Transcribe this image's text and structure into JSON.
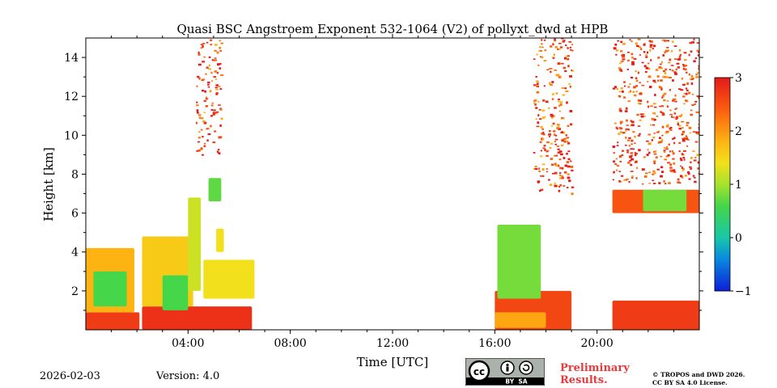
{
  "chart_data": {
    "type": "heatmap",
    "title": "Quasi BSC Angstroem Exponent 532-1064 (V2) of pollyxt_dwd at HPB",
    "xlabel": "Time [UTC]",
    "ylabel": "Height [km]",
    "xlim": [
      0,
      24
    ],
    "ylim": [
      0,
      15
    ],
    "x_ticks": [
      4,
      8,
      12,
      16,
      20
    ],
    "x_tick_labels": [
      "04:00",
      "08:00",
      "12:00",
      "16:00",
      "20:00"
    ],
    "y_ticks": [
      2,
      4,
      6,
      8,
      10,
      12,
      14
    ],
    "y_tick_labels": [
      "2",
      "4",
      "6",
      "8",
      "10",
      "12",
      "14"
    ],
    "colorbar": {
      "min": -1,
      "max": 3,
      "ticks": [
        -1,
        0,
        1,
        2,
        3
      ],
      "tick_labels": [
        "−1",
        "0",
        "1",
        "2",
        "3"
      ]
    },
    "regions": [
      {
        "t0": 0.0,
        "t1": 2.1,
        "h0": 0.0,
        "h1": 0.9,
        "value": 2.7
      },
      {
        "t0": 0.0,
        "t1": 1.9,
        "h0": 0.9,
        "h1": 4.2,
        "value": 1.8
      },
      {
        "t0": 0.3,
        "t1": 1.6,
        "h0": 1.2,
        "h1": 3.0,
        "value": 0.6
      },
      {
        "t0": 2.2,
        "t1": 6.5,
        "h0": 0.0,
        "h1": 1.2,
        "value": 2.8
      },
      {
        "t0": 2.2,
        "t1": 4.2,
        "h0": 1.2,
        "h1": 4.8,
        "value": 1.6
      },
      {
        "t0": 3.0,
        "t1": 4.0,
        "h0": 1.0,
        "h1": 2.8,
        "value": 0.6
      },
      {
        "t0": 4.0,
        "t1": 4.5,
        "h0": 2.0,
        "h1": 6.8,
        "value": 1.2
      },
      {
        "t0": 4.6,
        "t1": 6.6,
        "h0": 1.6,
        "h1": 3.6,
        "value": 1.4
      },
      {
        "t0": 4.8,
        "t1": 5.3,
        "h0": 6.6,
        "h1": 7.8,
        "value": 0.7
      },
      {
        "t0": 5.1,
        "t1": 5.4,
        "h0": 4.0,
        "h1": 5.2,
        "value": 1.4
      },
      {
        "t0": 16.0,
        "t1": 19.0,
        "h0": 0.0,
        "h1": 2.0,
        "value": 2.6
      },
      {
        "t0": 16.0,
        "t1": 18.0,
        "h0": 0.1,
        "h1": 0.9,
        "value": 1.9
      },
      {
        "t0": 16.1,
        "t1": 17.8,
        "h0": 1.6,
        "h1": 5.4,
        "value": 0.8
      },
      {
        "t0": 20.6,
        "t1": 24.0,
        "h0": 0.0,
        "h1": 1.5,
        "value": 2.7
      },
      {
        "t0": 20.6,
        "t1": 24.0,
        "h0": 6.0,
        "h1": 7.2,
        "value": 2.5
      },
      {
        "t0": 21.8,
        "t1": 23.5,
        "h0": 6.1,
        "h1": 7.2,
        "value": 0.8
      },
      {
        "t0": 17.5,
        "t1": 19.0,
        "h0": 7.0,
        "h1": 15.0,
        "value": 2.5
      },
      {
        "t0": 20.6,
        "t1": 24.0,
        "h0": 7.5,
        "h1": 15.0,
        "value": 2.6
      },
      {
        "t0": 4.3,
        "t1": 5.3,
        "h0": 9.0,
        "h1": 15.0,
        "value": 2.6
      }
    ]
  },
  "footer": {
    "date": "2026-02-03",
    "version": "Version: 4.0",
    "preliminary_line1": "Preliminary",
    "preliminary_line2": "Results.",
    "copyright_line1": "© TROPOS and DWD 2026.",
    "copyright_line2": "CC BY SA 4.0 License.",
    "license_badge": "BY  SA"
  },
  "colors": {
    "axis": "#000000",
    "preliminary": "#e8393b"
  }
}
